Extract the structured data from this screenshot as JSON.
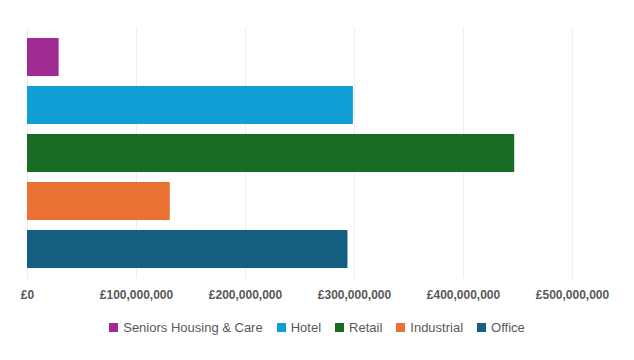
{
  "chart_data": {
    "type": "bar",
    "orientation": "horizontal",
    "categories": [
      "Seniors Housing & Care",
      "Hotel",
      "Retail",
      "Industrial",
      "Office"
    ],
    "values": [
      29000000,
      299000000,
      447000000,
      131000000,
      294000000
    ],
    "colors": [
      "#a02b93",
      "#0f9ed5",
      "#196b24",
      "#e97132",
      "#156082"
    ],
    "xlim": [
      0,
      500000000
    ],
    "xticks": [
      {
        "value": 0,
        "label": "£0"
      },
      {
        "value": 100000000,
        "label": "£100,000,000"
      },
      {
        "value": 200000000,
        "label": "£200,000,000"
      },
      {
        "value": 300000000,
        "label": "£300,000,000"
      },
      {
        "value": 400000000,
        "label": "£400,000,000"
      },
      {
        "value": 500000000,
        "label": "£500,000,000"
      }
    ],
    "grid": true,
    "legend": "bottom",
    "tick_labels": "x"
  }
}
